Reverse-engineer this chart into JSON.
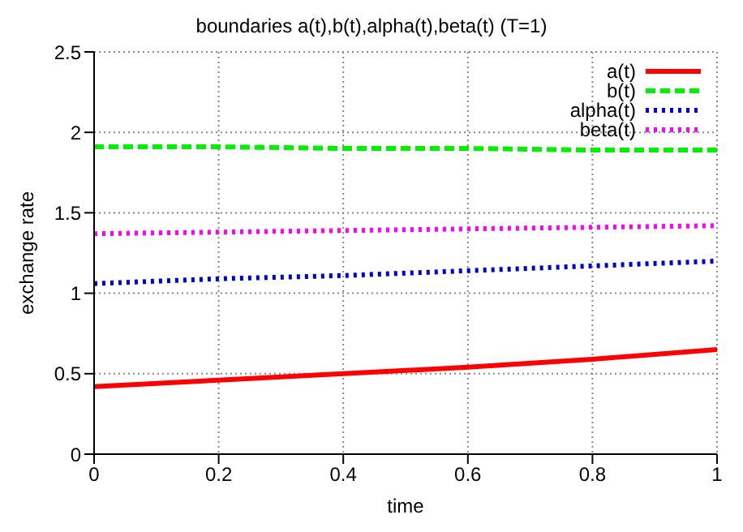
{
  "chart_data": {
    "type": "line",
    "title": "boundaries a(t),b(t),alpha(t),beta(t) (T=1)",
    "xlabel": "time",
    "ylabel": "exchange rate",
    "x": [
      0,
      0.2,
      0.4,
      0.6,
      0.8,
      1
    ],
    "series": [
      {
        "name": "a(t)",
        "color": "#ff0000",
        "line_style": "solid",
        "values": [
          0.42,
          0.46,
          0.5,
          0.54,
          0.59,
          0.65
        ]
      },
      {
        "name": "b(t)",
        "color": "#00ee00",
        "line_style": "dashed",
        "values": [
          1.91,
          1.91,
          1.9,
          1.9,
          1.89,
          1.89
        ]
      },
      {
        "name": "alpha(t)",
        "color": "#0000cc",
        "line_style": "dotted",
        "values": [
          1.06,
          1.09,
          1.11,
          1.14,
          1.17,
          1.2
        ]
      },
      {
        "name": "beta(t)",
        "color": "#ff00ff",
        "line_style": "dotted",
        "values": [
          1.37,
          1.38,
          1.39,
          1.4,
          1.41,
          1.42
        ]
      }
    ],
    "xlim": [
      0,
      1
    ],
    "xticks": [
      0,
      0.2,
      0.4,
      0.6,
      0.8,
      1
    ],
    "ylim": [
      0,
      2.5
    ],
    "yticks": [
      0,
      0.5,
      1,
      1.5,
      2,
      2.5
    ],
    "grid": true,
    "legend": "top right",
    "marker": "none"
  }
}
